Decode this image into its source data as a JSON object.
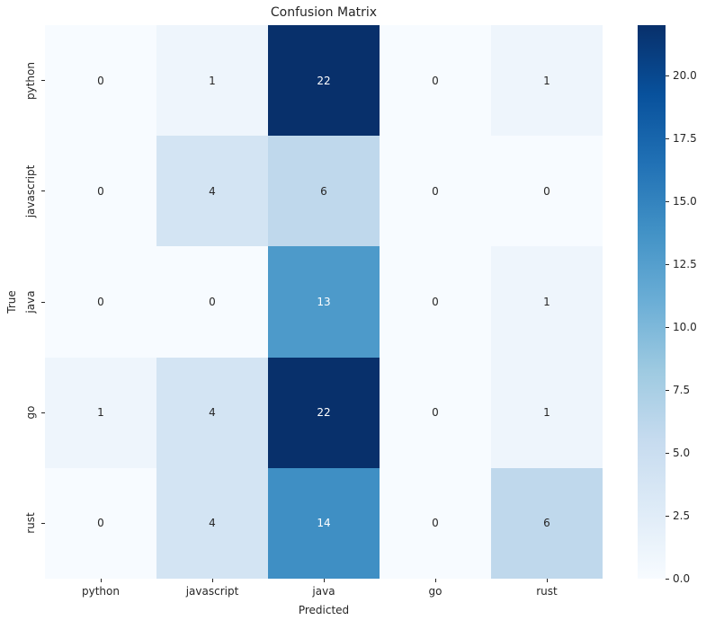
{
  "chart_data": {
    "type": "heatmap",
    "title": "Confusion Matrix",
    "xlabel": "Predicted",
    "ylabel": "True",
    "x_categories": [
      "python",
      "javascript",
      "java",
      "go",
      "rust"
    ],
    "y_categories": [
      "python",
      "javascript",
      "java",
      "go",
      "rust"
    ],
    "matrix": [
      [
        0,
        1,
        22,
        0,
        1
      ],
      [
        0,
        4,
        6,
        0,
        0
      ],
      [
        0,
        0,
        13,
        0,
        1
      ],
      [
        1,
        4,
        22,
        0,
        1
      ],
      [
        0,
        4,
        14,
        0,
        6
      ]
    ],
    "vmin": 0,
    "vmax": 22,
    "colormap_name": "Blues",
    "colormap_stops": [
      {
        "pos": 0.0,
        "color": "#f7fbff"
      },
      {
        "pos": 0.125,
        "color": "#deebf7"
      },
      {
        "pos": 0.25,
        "color": "#c6dbef"
      },
      {
        "pos": 0.375,
        "color": "#9ecae1"
      },
      {
        "pos": 0.5,
        "color": "#6baed6"
      },
      {
        "pos": 0.625,
        "color": "#4292c6"
      },
      {
        "pos": 0.75,
        "color": "#2171b5"
      },
      {
        "pos": 0.875,
        "color": "#08519c"
      },
      {
        "pos": 1.0,
        "color": "#08306b"
      }
    ],
    "colorbar_ticks": [
      0.0,
      2.5,
      5.0,
      7.5,
      10.0,
      12.5,
      15.0,
      17.5,
      20.0
    ],
    "annotation_color_dark": "#262626",
    "annotation_color_light": "#ffffff",
    "legend_position": "right-colorbar",
    "grid": false
  }
}
